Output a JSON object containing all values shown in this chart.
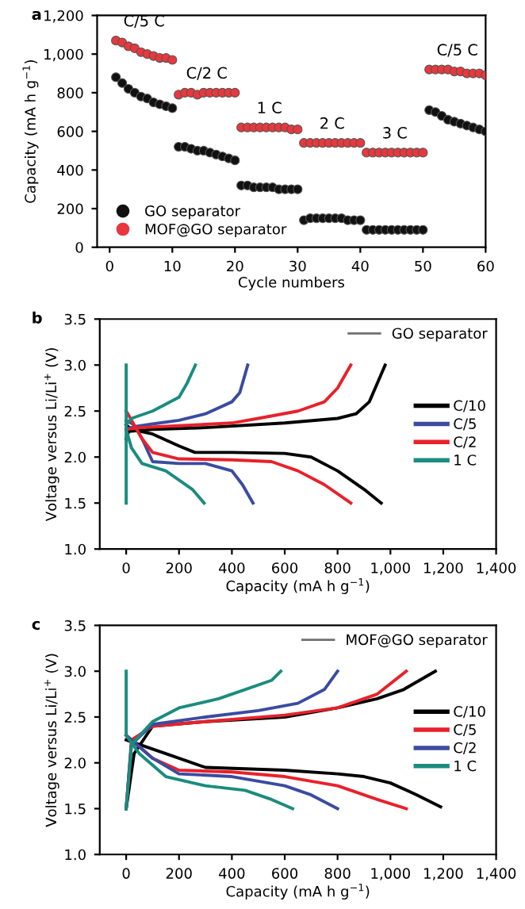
{
  "chart_data": [
    {
      "type": "scatter",
      "xlabel": "Cycle numbers",
      "ylabel": "Capacity (mA h g$^{−1}$)",
      "marker": "circle",
      "legend": "bottom left",
      "grid": false,
      "xlim": [
        -2,
        60
      ],
      "xticks": [
        0,
        10,
        20,
        30,
        40,
        50,
        60
      ],
      "ylim": [
        0,
        1200
      ],
      "yticks": [
        0,
        {
          "value": 200,
          "label": "200"
        },
        {
          "value": 400,
          "label": "400"
        },
        {
          "value": 600,
          "label": "600"
        },
        {
          "value": 800,
          "label": "800"
        },
        {
          "value": 1000,
          "label": "1,000"
        },
        {
          "value": 1200,
          "label": "1,200"
        }
      ],
      "x": [
        1,
        2,
        3,
        4,
        5,
        6,
        7,
        8,
        9,
        10,
        11,
        12,
        13,
        14,
        15,
        16,
        17,
        18,
        19,
        20,
        21,
        22,
        23,
        24,
        25,
        26,
        27,
        28,
        29,
        30,
        31,
        32,
        33,
        34,
        35,
        36,
        37,
        38,
        39,
        40,
        41,
        42,
        43,
        44,
        45,
        46,
        47,
        48,
        49,
        50,
        51,
        52,
        53,
        54,
        55,
        56,
        57,
        58,
        59,
        60
      ],
      "series": [
        {
          "name": "GO separator",
          "color": "#111111",
          "values": [
            880,
            850,
            820,
            800,
            780,
            770,
            750,
            740,
            730,
            720,
            520,
            520,
            510,
            500,
            500,
            490,
            480,
            470,
            460,
            450,
            320,
            320,
            310,
            310,
            310,
            310,
            300,
            300,
            300,
            300,
            140,
            150,
            150,
            150,
            150,
            150,
            150,
            140,
            140,
            140,
            90,
            90,
            90,
            90,
            90,
            90,
            90,
            90,
            90,
            90,
            710,
            700,
            680,
            660,
            650,
            640,
            630,
            620,
            610,
            600
          ]
        },
        {
          "name": "MOF@GO separator",
          "color": "#e8383d",
          "values": [
            1070,
            1060,
            1040,
            1030,
            1010,
            1000,
            990,
            980,
            980,
            970,
            790,
            800,
            800,
            790,
            800,
            800,
            800,
            800,
            800,
            800,
            620,
            620,
            620,
            620,
            620,
            620,
            620,
            620,
            610,
            610,
            540,
            540,
            540,
            540,
            540,
            540,
            540,
            540,
            540,
            540,
            490,
            490,
            490,
            490,
            490,
            490,
            490,
            490,
            490,
            490,
            920,
            920,
            920,
            920,
            910,
            910,
            900,
            900,
            900,
            890
          ]
        }
      ],
      "annotations": [
        "a",
        "C/5 C",
        "C/2 C",
        "1 C",
        "2 C",
        "3 C",
        "C/5 C"
      ]
    },
    {
      "type": "line",
      "xlabel": "Capacity (mA h g$^{−1}$)",
      "ylabel": "Voltage versus Li/Li$^{+}$ (V)",
      "legend": "right",
      "legend_title": "GO separator",
      "grid": false,
      "line_style": "solid",
      "xlim": [
        -100,
        1400
      ],
      "xticks": [
        0,
        200,
        400,
        600,
        800,
        {
          "value": 1000,
          "label": "1,000"
        },
        {
          "value": 1200,
          "label": "1,200"
        },
        {
          "value": 1400,
          "label": "1,400"
        }
      ],
      "ylim": [
        1.0,
        3.5
      ],
      "yticks": [
        {
          "value": 1.0,
          "label": "1.0"
        },
        {
          "value": 1.5,
          "label": "1.5"
        },
        {
          "value": 2.0,
          "label": "2.0"
        },
        {
          "value": 2.5,
          "label": "2.5"
        },
        {
          "value": 3.0,
          "label": "3.0"
        },
        {
          "value": 3.5,
          "label": "3.5"
        }
      ],
      "series": [
        {
          "name": "C/10",
          "color": "#000000",
          "x": [
            0,
            20,
            100,
            200,
            260,
            400,
            600,
            700,
            800,
            900,
            965,
            null,
            0,
            10,
            100,
            300,
            600,
            800,
            870,
            920,
            950,
            980
          ],
          "values": [
            2.35,
            2.3,
            2.25,
            2.12,
            2.05,
            2.05,
            2.04,
            2.0,
            1.85,
            1.65,
            1.5,
            null,
            2.2,
            2.28,
            2.3,
            2.32,
            2.37,
            2.42,
            2.47,
            2.6,
            2.8,
            3.0
          ]
        },
        {
          "name": "C/5",
          "color": "#3b4ba0",
          "x": [
            0,
            30,
            60,
            100,
            200,
            300,
            400,
            440,
            480,
            null,
            0,
            30,
            100,
            200,
            300,
            400,
            430,
            460
          ],
          "values": [
            2.4,
            2.35,
            2.2,
            1.95,
            1.93,
            1.93,
            1.85,
            1.7,
            1.5,
            null,
            2.3,
            2.33,
            2.36,
            2.4,
            2.47,
            2.6,
            2.7,
            3.0
          ]
        },
        {
          "name": "C/2",
          "color": "#e8212a",
          "x": [
            0,
            20,
            60,
            100,
            200,
            400,
            550,
            650,
            750,
            850,
            null,
            0,
            50,
            200,
            400,
            500,
            650,
            750,
            800,
            850
          ],
          "values": [
            2.5,
            2.4,
            2.2,
            2.05,
            1.98,
            1.97,
            1.95,
            1.85,
            1.7,
            1.5,
            null,
            2.3,
            2.32,
            2.34,
            2.37,
            2.42,
            2.5,
            2.6,
            2.75,
            3.0
          ]
        },
        {
          "name": "1 C",
          "color": "#1a8c7e",
          "x": [
            0,
            0,
            20,
            60,
            150,
            250,
            295,
            null,
            0,
            0,
            20,
            100,
            200,
            230,
            262
          ],
          "values": [
            3.0,
            2.3,
            2.1,
            1.93,
            1.85,
            1.65,
            1.5,
            null,
            1.5,
            2.35,
            2.42,
            2.5,
            2.65,
            2.8,
            3.0
          ]
        }
      ],
      "annotations": [
        "b"
      ]
    },
    {
      "type": "line",
      "xlabel": "Capacity (mA h g$^{−1}$)",
      "ylabel": "Voltage versus Li/Li$^{+}$ (V)",
      "legend": "right",
      "legend_title": "MOF@GO separator",
      "grid": false,
      "line_style": "solid",
      "xlim": [
        -100,
        1400
      ],
      "xticks": [
        0,
        200,
        400,
        600,
        800,
        {
          "value": 1000,
          "label": "1,000"
        },
        {
          "value": 1200,
          "label": "1,200"
        },
        {
          "value": 1400,
          "label": "1,400"
        }
      ],
      "ylim": [
        1.0,
        3.5
      ],
      "yticks": [
        {
          "value": 1.0,
          "label": "1.0"
        },
        {
          "value": 1.5,
          "label": "1.5"
        },
        {
          "value": 2.0,
          "label": "2.0"
        },
        {
          "value": 2.5,
          "label": "2.5"
        },
        {
          "value": 3.0,
          "label": "3.0"
        },
        {
          "value": 3.5,
          "label": "3.5"
        }
      ],
      "series": [
        {
          "name": "C/10",
          "color": "#000000",
          "x": [
            0,
            50,
            150,
            300,
            600,
            800,
            900,
            1000,
            1100,
            1190,
            null,
            0,
            30,
            100,
            300,
            600,
            800,
            950,
            1050,
            1170
          ],
          "values": [
            2.25,
            2.2,
            2.1,
            1.95,
            1.92,
            1.88,
            1.85,
            1.78,
            1.65,
            1.52,
            null,
            1.5,
            2.1,
            2.4,
            2.45,
            2.5,
            2.6,
            2.7,
            2.8,
            3.0
          ]
        },
        {
          "name": "C/5",
          "color": "#e8212a",
          "x": [
            0,
            100,
            200,
            400,
            600,
            800,
            950,
            1060,
            null,
            0,
            20,
            100,
            300,
            600,
            800,
            950,
            1060
          ],
          "values": [
            2.3,
            2.05,
            1.92,
            1.9,
            1.85,
            1.75,
            1.6,
            1.5,
            null,
            1.5,
            2.25,
            2.4,
            2.45,
            2.52,
            2.6,
            2.75,
            3.0
          ]
        },
        {
          "name": "C/2",
          "color": "#3b4ba0",
          "x": [
            0,
            100,
            200,
            400,
            600,
            700,
            800,
            null,
            0,
            20,
            100,
            300,
            500,
            650,
            750,
            800
          ],
          "values": [
            2.3,
            2.05,
            1.88,
            1.85,
            1.75,
            1.65,
            1.5,
            null,
            1.5,
            2.2,
            2.42,
            2.5,
            2.57,
            2.65,
            2.8,
            3.0
          ]
        },
        {
          "name": "1 C",
          "color": "#1a8c7e",
          "x": [
            0,
            0,
            50,
            150,
            300,
            450,
            550,
            630,
            null,
            0,
            20,
            100,
            200,
            350,
            450,
            550,
            585
          ],
          "values": [
            3.0,
            2.3,
            2.1,
            1.85,
            1.75,
            1.7,
            1.6,
            1.5,
            null,
            1.5,
            2.2,
            2.45,
            2.6,
            2.7,
            2.8,
            2.9,
            3.0
          ]
        }
      ],
      "annotations": [
        "c"
      ]
    }
  ]
}
